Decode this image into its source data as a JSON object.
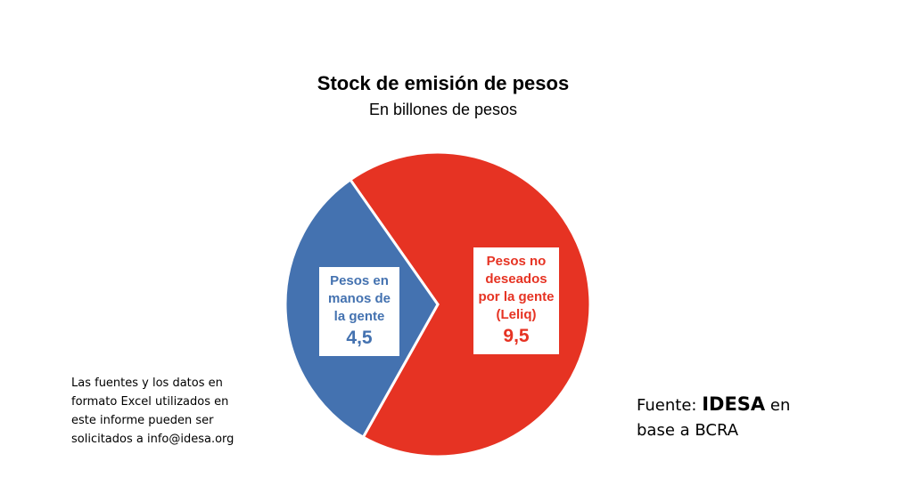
{
  "chart_data": {
    "type": "pie",
    "title": "Stock de emisión de pesos",
    "subtitle": "En billones de pesos",
    "categories": [
      "Pesos en manos de la gente",
      "Pesos no deseados por la gente (Leliq)"
    ],
    "values": [
      4.5,
      9.5
    ],
    "value_labels": [
      "4,5",
      "9,5"
    ],
    "colors": [
      "#4472b0",
      "#e63323"
    ]
  },
  "note": "Las fuentes y los datos en formato Excel utilizados en este informe pueden ser solicitados a info@idesa.org",
  "source": {
    "prefix": "Fuente:",
    "org": "IDESA",
    "suffix": "en base a BCRA"
  }
}
